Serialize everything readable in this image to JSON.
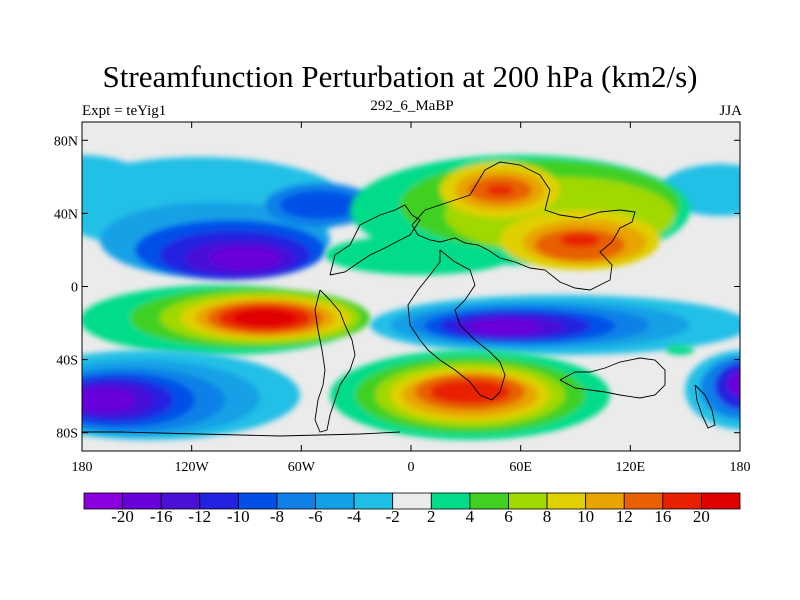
{
  "title": "Streamfunction Perturbation at 200 hPa (km2/s)",
  "left_label": "Expt = teYig1",
  "center_label": "292_6_MaBP",
  "right_label": "JJA",
  "lon_ticks": [
    {
      "lon": -180,
      "label": "180"
    },
    {
      "lon": -120,
      "label": "120W"
    },
    {
      "lon": -60,
      "label": "60W"
    },
    {
      "lon": 0,
      "label": "0"
    },
    {
      "lon": 60,
      "label": "60E"
    },
    {
      "lon": 120,
      "label": "120E"
    },
    {
      "lon": 180,
      "label": "180"
    }
  ],
  "lat_ticks": [
    {
      "lat": 80,
      "label": "80N"
    },
    {
      "lat": 40,
      "label": "40N"
    },
    {
      "lat": 0,
      "label": "0"
    },
    {
      "lat": -40,
      "label": "40S"
    },
    {
      "lat": -80,
      "label": "80S"
    }
  ],
  "colorbar": {
    "colors": [
      "#8a00e0",
      "#6a00dc",
      "#4a10d8",
      "#2222e0",
      "#0050e8",
      "#1080e8",
      "#14a0e6",
      "#20c0e6",
      "#ebebeb",
      "#00dc8a",
      "#40d020",
      "#a0d800",
      "#e0d000",
      "#e8a400",
      "#e86000",
      "#e82000",
      "#e00000"
    ],
    "labels": [
      "-20",
      "-16",
      "-12",
      "-10",
      "-8",
      "-6",
      "-4",
      "-2",
      "2",
      "4",
      "6",
      "8",
      "10",
      "12",
      "16",
      "20"
    ]
  }
}
